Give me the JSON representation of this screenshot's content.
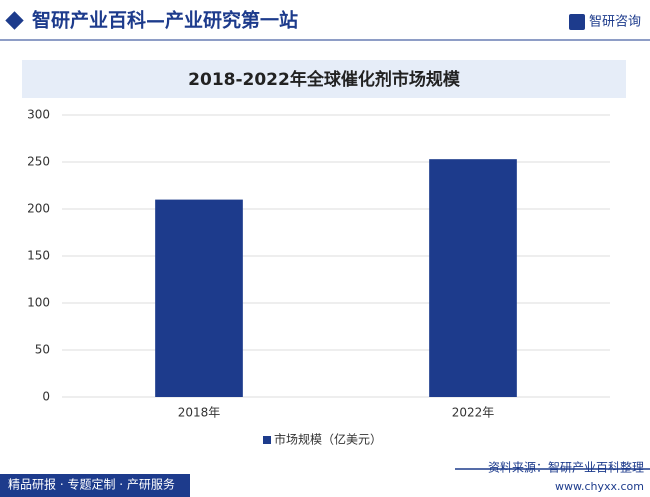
{
  "header": {
    "title": "智研产业百科—产业研究第一站",
    "logo": "智研咨询"
  },
  "footer": {
    "left": "精品研报 · 专题定制 · 产研服务",
    "source": "资料来源：智研产业百科整理",
    "url": "www.chyxx.com"
  },
  "chart_data": {
    "type": "bar",
    "title": "2018-2022年全球催化剂市场规模",
    "categories": [
      "2018年",
      "2022年"
    ],
    "series": [
      {
        "name": "市场规模（亿美元）",
        "color": "#1d3b8c",
        "values": [
          210,
          253
        ]
      }
    ],
    "ylim": [
      0,
      300
    ],
    "yticks": [
      0,
      50,
      100,
      150,
      200,
      250,
      300
    ],
    "grid": true,
    "legend": "bottom"
  }
}
